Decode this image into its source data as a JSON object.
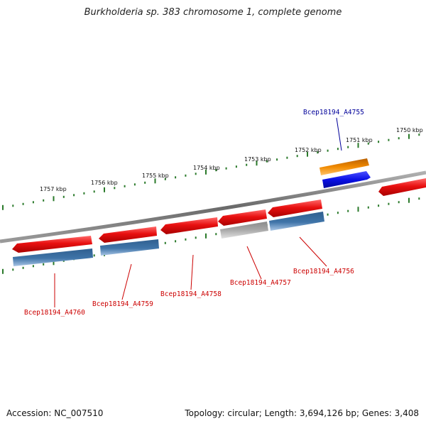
{
  "title": "Burkholderia sp. 383 chromosome 1, complete genome",
  "footer": {
    "accession": "Accession: NC_007510",
    "topology": "Topology: circular; Length: 3,694,126 bp; Genes: 3,408"
  },
  "colors": {
    "backbone": "#7a7a7a",
    "ticks": "#2a7a2a",
    "cds_red": "#e81010",
    "gene_steelblue": "#3f74a8",
    "cds_grey": "#a9a9a9",
    "cds_orange": "#f08a00",
    "gene_blue": "#0a10e6",
    "label_red": "#cc0000",
    "label_blue": "#00009a"
  },
  "kbp_labels": [
    "1750 kbp",
    "1751 kbp",
    "1752 kbp",
    "1753 kbp",
    "1754 kbp",
    "1755 kbp",
    "1756 kbp",
    "1757 kbp"
  ],
  "gene_labels": [
    {
      "text": "Bcep18194_A4755",
      "strand": "forward"
    },
    {
      "text": "Bcep18194_A4756",
      "strand": "reverse"
    },
    {
      "text": "Bcep18194_A4757",
      "strand": "reverse"
    },
    {
      "text": "Bcep18194_A4758",
      "strand": "reverse"
    },
    {
      "text": "Bcep18194_A4759",
      "strand": "reverse"
    },
    {
      "text": "Bcep18194_A4760",
      "strand": "reverse"
    }
  ]
}
